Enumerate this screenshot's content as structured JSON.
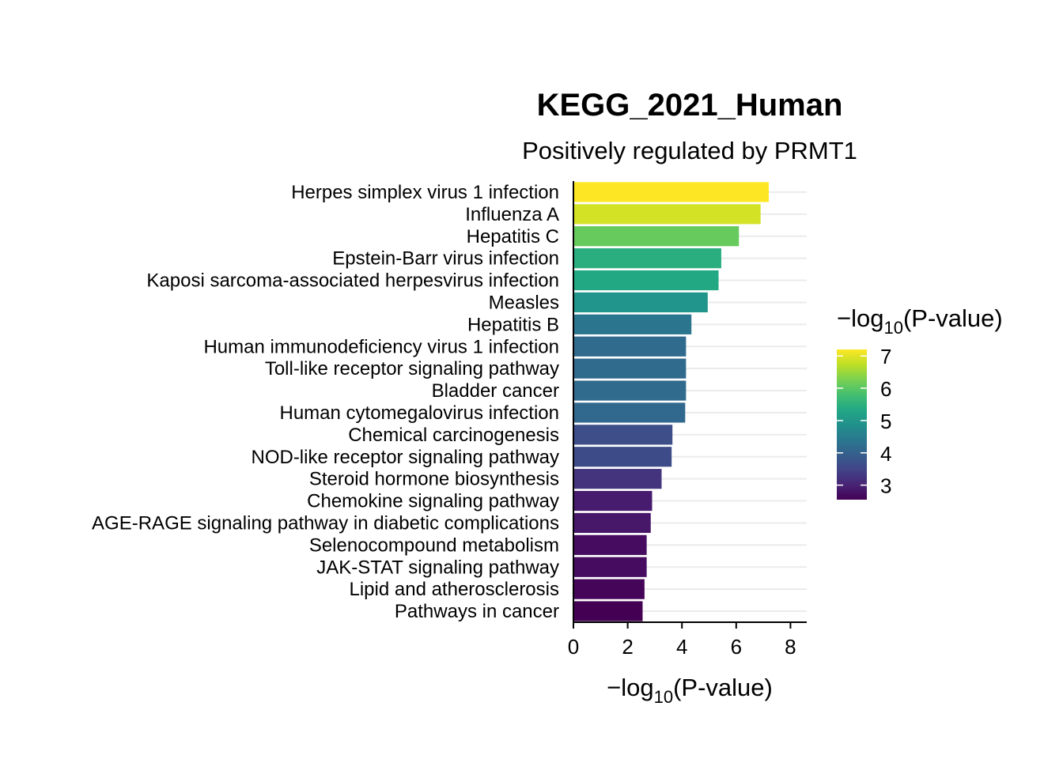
{
  "chart_data": {
    "type": "bar",
    "orientation": "horizontal",
    "title": "KEGG_2021_Human",
    "subtitle": "Positively regulated by PRMT1",
    "xlabel": {
      "prefix": "−log",
      "sub": "10",
      "suffix": "(P-value)"
    },
    "ylabel": "",
    "xlim": [
      0,
      8.6
    ],
    "xticks": [
      0,
      2,
      4,
      6,
      8
    ],
    "grid": "horizontal-major",
    "categories": [
      "Herpes simplex virus 1 infection",
      "Influenza A",
      "Hepatitis C",
      "Epstein-Barr virus infection",
      "Kaposi sarcoma-associated herpesvirus infection",
      "Measles",
      "Hepatitis B",
      "Human immunodeficiency virus 1 infection",
      "Toll-like receptor signaling pathway",
      "Bladder cancer",
      "Human cytomegalovirus infection",
      "Chemical carcinogenesis",
      "NOD-like receptor signaling pathway",
      "Steroid hormone biosynthesis",
      "Chemokine signaling pathway",
      "AGE-RAGE signaling pathway in diabetic complications",
      "Selenocompound metabolism",
      "JAK-STAT signaling pathway",
      "Lipid and atherosclerosis",
      "Pathways in cancer"
    ],
    "values": [
      7.2,
      6.9,
      6.1,
      5.45,
      5.35,
      4.95,
      4.35,
      4.15,
      4.15,
      4.15,
      4.12,
      3.65,
      3.62,
      3.25,
      2.9,
      2.85,
      2.7,
      2.7,
      2.62,
      2.55
    ],
    "legend": {
      "title": {
        "prefix": "−log",
        "sub": "10",
        "suffix": "(P-value)"
      },
      "placement": "right",
      "colormap": "viridis",
      "range": [
        2.55,
        7.2
      ],
      "ticks": [
        3,
        4,
        5,
        6,
        7
      ]
    }
  }
}
